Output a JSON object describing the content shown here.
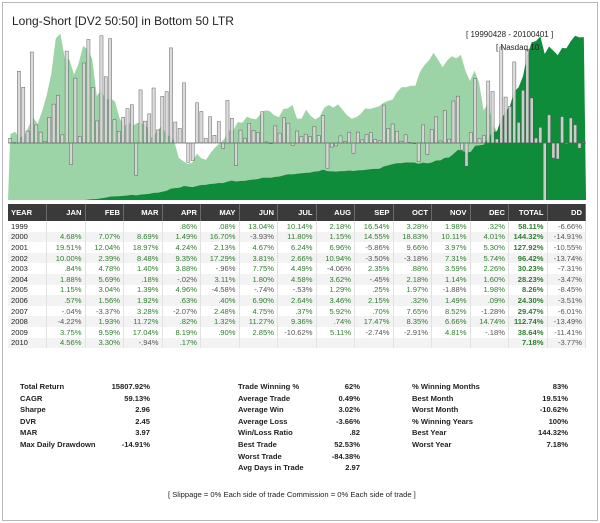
{
  "chart_data": {
    "type": "bar",
    "title": "Long-Short [DV2 50:50] in Bottom 50 LTR",
    "date_range": "[ 19990428 - 20100401 ]",
    "benchmark_label": "[ Nasdaq 10",
    "series": [
      {
        "values": [
          0.86,
          0.08,
          13.04,
          10.14,
          2.18,
          16.54,
          3.28,
          1.98,
          0.32,
          4.68,
          7.07,
          8.69,
          1.49,
          16.7,
          -3.93,
          11.8,
          1.15,
          14.55,
          18.83,
          10.11,
          4.01,
          19.51,
          12.04,
          18.97,
          4.24,
          2.13,
          4.67,
          6.24,
          6.96,
          -5.86,
          9.66,
          3.97,
          5.3,
          10.0,
          2.39,
          8.48,
          9.35,
          17.29,
          3.81,
          2.66,
          10.94,
          -3.5,
          -3.18,
          7.31,
          5.74,
          0.84,
          4.78,
          1.4,
          3.88,
          -0.96,
          7.75,
          4.49,
          -4.06,
          2.35,
          0.88,
          3.59,
          2.26,
          1.88,
          5.69,
          0.18,
          -0.02,
          3.11,
          1.8,
          4.58,
          3.62,
          -0.45,
          2.18,
          1.14,
          1.6,
          1.15,
          3.04,
          1.39,
          4.96,
          -4.58,
          -0.74,
          -0.53,
          1.29,
          0.25,
          1.97,
          -1.88,
          1.98,
          0.57,
          1.56,
          1.92,
          0.63,
          0.4,
          6.9,
          2.64,
          3.46,
          2.15,
          0.32,
          1.49,
          0.09,
          -0.04,
          -3.37,
          3.28,
          -2.07,
          2.48,
          4.75,
          0.37,
          5.92,
          0.7,
          7.65,
          8.52,
          -1.28,
          -4.22,
          1.93,
          11.72,
          0.82,
          1.32,
          11.27,
          9.36,
          0.74,
          17.47,
          8.35,
          6.66,
          14.74,
          3.75,
          9.59,
          17.04,
          8.19,
          0.9,
          2.85,
          -10.62,
          5.11,
          -2.74,
          -2.91,
          4.81,
          -0.18,
          4.56,
          3.3,
          -0.94,
          0.17
        ]
      },
      {
        "values": [
          1,
          1.06,
          1.22,
          1.36,
          1.41,
          1.66,
          1.72,
          1.76,
          1.76,
          1.85,
          1.99,
          2.16,
          2.21,
          2.59,
          2.49,
          2.79,
          2.83,
          3.26,
          3.87,
          4.28,
          4.46,
          5.33,
          5.98,
          7.13,
          7.44,
          7.6,
          7.96,
          8.46,
          9.05,
          8.52,
          9.35,
          9.73,
          10.24,
          11.27,
          11.54,
          12.52,
          13.69,
          16.06,
          16.67,
          17.12,
          19.0,
          18.34,
          17.76,
          19.06,
          20.15,
          20.32,
          21.3,
          21.6,
          22.44,
          22.22,
          23.94,
          25.02,
          24.0,
          24.57,
          24.78,
          25.67,
          26.25,
          26.74,
          28.26,
          28.31,
          28.3,
          29.18,
          29.71,
          31.07,
          32.2,
          32.05,
          32.75,
          33.13,
          33.66,
          34.05,
          35.09,
          35.58,
          37.34,
          35.63,
          35.37,
          35.18,
          35.63,
          35.72,
          36.42,
          35.74,
          36.45,
          36.66,
          37.23,
          37.94,
          38.18,
          38.33,
          40.98,
          42.06,
          43.55,
          44.49,
          44.63,
          45.3,
          45.34,
          45.32,
          43.79,
          45.23,
          44.29,
          45.39,
          47.55,
          47.72,
          50.54,
          50.89,
          54.78,
          59.44,
          58.68,
          56.2,
          57.28,
          64.0,
          64.53,
          65.38,
          72.75,
          79.56,
          80.15,
          94.15,
          102.0,
          108.8,
          124.8,
          129.5,
          141.9,
          166.1,
          179.7,
          181.3,
          186.5,
          166.7,
          175.2,
          170.4,
          165.5,
          173.5,
          173.2,
          181.1,
          187.1,
          185.3,
          185.6
        ]
      },
      {
        "values": [
          100,
          104,
          96,
          97,
          111,
          125,
          115,
          134,
          157,
          188,
          240,
          247,
          211,
          209,
          187,
          203,
          229,
          224,
          210,
          156,
          165,
          150,
          153,
          148,
          124,
          112,
          117,
          113,
          117,
          116,
          112,
          95,
          102,
          111,
          104,
          97,
          91,
          66,
          61,
          57,
          59,
          72,
          65,
          63,
          73,
          81,
          87,
          93,
          106,
          106,
          118,
          117,
          126,
          123,
          122,
          130,
          135,
          134,
          128,
          125,
          137,
          138,
          143,
          123,
          123,
          136,
          127,
          122,
          126,
          139,
          143,
          139,
          144,
          136,
          128,
          123,
          125,
          130,
          138,
          137,
          139,
          141,
          146,
          149,
          151,
          162,
          169,
          169,
          171,
          171,
          191,
          201,
          208,
          219,
          209,
          198,
          208,
          214,
          211,
          216,
          193,
          178,
          193,
          176,
          135,
          145,
          116,
          103,
          93,
          104,
          120,
          120,
          112,
          116,
          131,
          145,
          149,
          158,
          167,
          173,
          190,
          193,
          188,
          205,
          200,
          193,
          205
        ]
      }
    ],
    "table": {
      "headers": [
        "YEAR",
        "JAN",
        "FEB",
        "MAR",
        "APR",
        "MAY",
        "JUN",
        "JUL",
        "AUG",
        "SEP",
        "OCT",
        "NOV",
        "DEC",
        "TOTAL",
        "DD"
      ],
      "rows": [
        [
          "1999",
          "",
          "",
          "",
          ".86%",
          ".08%",
          "13.04%",
          "10.14%",
          "2.18%",
          "16.54%",
          "3.28%",
          "1.98%",
          ".32%",
          "58.11%",
          "-6.66%"
        ],
        [
          "2000",
          "4.68%",
          "7.07%",
          "8.69%",
          "1.49%",
          "16.70%",
          "-3.93%",
          "11.80%",
          "1.15%",
          "14.55%",
          "18.83%",
          "10.11%",
          "4.01%",
          "144.32%",
          "-14.91%"
        ],
        [
          "2001",
          "19.51%",
          "12.04%",
          "18.97%",
          "4.24%",
          "2.13%",
          "4.67%",
          "6.24%",
          "6.96%",
          "-5.86%",
          "9.66%",
          "3.97%",
          "5.30%",
          "127.92%",
          "-10.55%"
        ],
        [
          "2002",
          "10.00%",
          "2.39%",
          "8.48%",
          "9.35%",
          "17.29%",
          "3.81%",
          "2.66%",
          "10.94%",
          "-3.50%",
          "-3.18%",
          "7.31%",
          "5.74%",
          "96.42%",
          "-13.74%"
        ],
        [
          "2003",
          ".84%",
          "4.78%",
          "1.40%",
          "3.88%",
          "-.96%",
          "7.75%",
          "4.49%",
          "-4.06%",
          "2.35%",
          ".88%",
          "3.59%",
          "2.26%",
          "30.23%",
          "-7.31%"
        ],
        [
          "2004",
          "1.88%",
          "5.69%",
          ".18%",
          "-.02%",
          "3.11%",
          "1.80%",
          "4.58%",
          "3.62%",
          "-.45%",
          "2.18%",
          "1.14%",
          "1.60%",
          "28.23%",
          "-3.47%"
        ],
        [
          "2005",
          "1.15%",
          "3.04%",
          "1.39%",
          "4.96%",
          "-4.58%",
          "-.74%",
          "-.53%",
          "1.29%",
          ".25%",
          "1.97%",
          "-1.88%",
          "1.98%",
          "8.26%",
          "-8.45%"
        ],
        [
          "2006",
          ".57%",
          "1.56%",
          "1.92%",
          ".63%",
          ".40%",
          "6.90%",
          "2.64%",
          "3.46%",
          "2.15%",
          ".32%",
          "1.49%",
          ".09%",
          "24.30%",
          "-3.51%"
        ],
        [
          "2007",
          "-.04%",
          "-3.37%",
          "3.28%",
          "-2.07%",
          "2.48%",
          "4.75%",
          ".37%",
          "5.92%",
          ".70%",
          "7.65%",
          "8.52%",
          "-1.28%",
          "29.47%",
          "-6.01%"
        ],
        [
          "2008",
          "-4.22%",
          "1.93%",
          "11.72%",
          ".82%",
          "1.32%",
          "11.27%",
          "9.36%",
          ".74%",
          "17.47%",
          "8.35%",
          "6.66%",
          "14.74%",
          "112.74%",
          "-13.49%"
        ],
        [
          "2009",
          "3.75%",
          "9.59%",
          "17.04%",
          "8.19%",
          ".90%",
          "2.85%",
          "-10.62%",
          "5.11%",
          "-2.74%",
          "-2.91%",
          "4.81%",
          "-.18%",
          "38.64%",
          "-11.41%"
        ],
        [
          "2010",
          "4.56%",
          "3.30%",
          "-.94%",
          ".17%",
          "",
          "",
          "",
          "",
          "",
          "",
          "",
          "",
          "7.18%",
          "-3.77%"
        ]
      ]
    },
    "stats_col1": [
      {
        "label": "Total Return",
        "value": "15807.92%"
      },
      {
        "label": "CAGR",
        "value": "59.13%"
      },
      {
        "label": "Sharpe",
        "value": "2.96"
      },
      {
        "label": "DVR",
        "value": "2.45"
      },
      {
        "label": "MAR",
        "value": "3.97"
      },
      {
        "label": "Max Daily Drawdown",
        "value": "-14.91%"
      }
    ],
    "stats_col2": [
      {
        "label": "Trade Winning %",
        "value": "62%"
      },
      {
        "label": "Average Trade",
        "value": "0.49%"
      },
      {
        "label": "Average Win",
        "value": "3.02%"
      },
      {
        "label": "Average Loss",
        "value": "-3.66%"
      },
      {
        "label": "Win/Loss Ratio",
        "value": ".82"
      },
      {
        "label": "Best Trade",
        "value": "52.53%"
      },
      {
        "label": "Worst Trade",
        "value": "-84.38%"
      },
      {
        "label": "Avg Days in Trade",
        "value": "2.97"
      }
    ],
    "stats_col3": [
      {
        "label": "% Winning Months",
        "value": "83%"
      },
      {
        "label": "Best Month",
        "value": "19.51%"
      },
      {
        "label": "Worst Month",
        "value": "-10.62%"
      },
      {
        "label": "% Winning Years",
        "value": "100%"
      },
      {
        "label": "Best Year",
        "value": "144.32%"
      },
      {
        "label": "Worst Year",
        "value": "7.18%"
      }
    ],
    "footnote": "[ Slippage = 0% Each side of trade     Commission = 0% Each side of trade ]",
    "colors": {
      "equity": "#0e8c3a",
      "benchmark": "#7cc58a",
      "bar_fill": "#d8d8d8",
      "bar_stroke": "#555555",
      "header_bg": "#3a3a3a",
      "positive": "#2f7d2f"
    }
  }
}
